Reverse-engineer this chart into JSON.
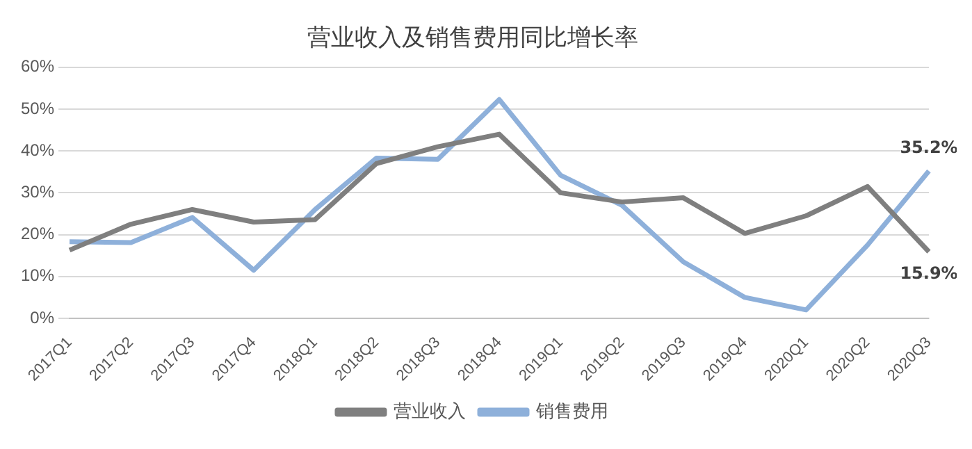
{
  "chart_data": {
    "type": "line",
    "title": "营业收入及销售费用同比增长率",
    "categories": [
      "2017Q1",
      "2017Q2",
      "2017Q3",
      "2017Q4",
      "2018Q1",
      "2018Q2",
      "2018Q3",
      "2018Q4",
      "2019Q1",
      "2019Q2",
      "2019Q3",
      "2019Q4",
      "2020Q1",
      "2020Q2",
      "2020Q3"
    ],
    "series": [
      {
        "name": "营业收入",
        "color": "#7f7f7f",
        "values": [
          16.3,
          22.5,
          26,
          23,
          23.6,
          37,
          41,
          44,
          30,
          27.8,
          28.8,
          20.3,
          24.5,
          31.5,
          15.9
        ],
        "value_labels": [
          null,
          null,
          null,
          null,
          null,
          null,
          null,
          null,
          null,
          null,
          null,
          null,
          null,
          null,
          "15.9%"
        ]
      },
      {
        "name": "销售费用",
        "color": "#8eb0da",
        "values": [
          18.3,
          18.1,
          24.1,
          11.5,
          26,
          38.3,
          38,
          52.3,
          34.2,
          27,
          13.5,
          5,
          2,
          17.5,
          35.2
        ],
        "value_labels": [
          null,
          null,
          null,
          null,
          null,
          null,
          null,
          null,
          null,
          null,
          null,
          null,
          null,
          null,
          "35.2%"
        ]
      }
    ],
    "ylim": [
      0,
      60
    ],
    "yticks": [
      {
        "value": 0,
        "label": "0%"
      },
      {
        "value": 10,
        "label": "10%"
      },
      {
        "value": 20,
        "label": "20%"
      },
      {
        "value": 30,
        "label": "30%"
      },
      {
        "value": 40,
        "label": "40%"
      },
      {
        "value": 50,
        "label": "50%"
      },
      {
        "value": 60,
        "label": "60%"
      }
    ],
    "grid": "y",
    "legend": "bottom",
    "marker": "none",
    "line_style": "solid"
  }
}
